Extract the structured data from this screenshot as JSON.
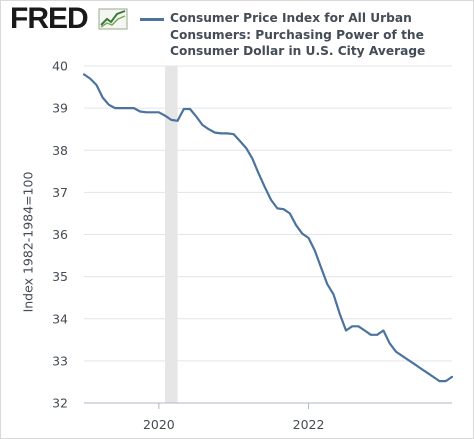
{
  "header": {
    "logo_text": "FRED",
    "logo_icon": "line-chart-icon",
    "legend_label": "Consumer Price Index for All Urban\nConsumers: Purchasing Power of the\nConsumer Dollar in U.S. City Average"
  },
  "colors": {
    "line": "#4c729e",
    "recession": "#e6e6e6",
    "grid": "#e1e5ec",
    "text": "#444c56"
  },
  "chart_data": {
    "type": "line",
    "title": "",
    "xlabel": "",
    "ylabel": "Index 1982-1984=100",
    "xlim": [
      "2019-01",
      "2023-12"
    ],
    "ylim": [
      32,
      40
    ],
    "yticks": [
      32,
      33,
      34,
      35,
      36,
      37,
      38,
      39,
      40
    ],
    "xticks": [
      "2020",
      "2022"
    ],
    "grid": true,
    "legend": "top",
    "recession_shading": [
      {
        "start": "2020-02",
        "end": "2020-04"
      }
    ],
    "series": [
      {
        "name": "Consumer Price Index for All Urban Consumers: Purchasing Power of the Consumer Dollar in U.S. City Average",
        "x": [
          "2019-01",
          "2019-02",
          "2019-03",
          "2019-04",
          "2019-05",
          "2019-06",
          "2019-07",
          "2019-08",
          "2019-09",
          "2019-10",
          "2019-11",
          "2019-12",
          "2020-01",
          "2020-02",
          "2020-03",
          "2020-04",
          "2020-05",
          "2020-06",
          "2020-07",
          "2020-08",
          "2020-09",
          "2020-10",
          "2020-11",
          "2020-12",
          "2021-01",
          "2021-02",
          "2021-03",
          "2021-04",
          "2021-05",
          "2021-06",
          "2021-07",
          "2021-08",
          "2021-09",
          "2021-10",
          "2021-11",
          "2021-12",
          "2022-01",
          "2022-02",
          "2022-03",
          "2022-04",
          "2022-05",
          "2022-06",
          "2022-07",
          "2022-08",
          "2022-09",
          "2022-10",
          "2022-11",
          "2022-12",
          "2023-01",
          "2023-02",
          "2023-03",
          "2023-04",
          "2023-05",
          "2023-06",
          "2023-07",
          "2023-08",
          "2023-09",
          "2023-10",
          "2023-11",
          "2023-12"
        ],
        "values": [
          39.8,
          39.7,
          39.55,
          39.25,
          39.08,
          39.0,
          39.0,
          39.0,
          39.0,
          38.92,
          38.9,
          38.9,
          38.9,
          38.82,
          38.72,
          38.7,
          38.98,
          38.98,
          38.8,
          38.6,
          38.5,
          38.42,
          38.4,
          38.4,
          38.38,
          38.22,
          38.05,
          37.8,
          37.45,
          37.12,
          36.82,
          36.62,
          36.6,
          36.5,
          36.22,
          36.02,
          35.92,
          35.62,
          35.22,
          34.82,
          34.58,
          34.12,
          33.72,
          33.82,
          33.82,
          33.72,
          33.62,
          33.62,
          33.72,
          33.42,
          33.22,
          33.12,
          33.02,
          32.92,
          32.82,
          32.72,
          32.62,
          32.52,
          32.52,
          32.62
        ]
      }
    ]
  }
}
